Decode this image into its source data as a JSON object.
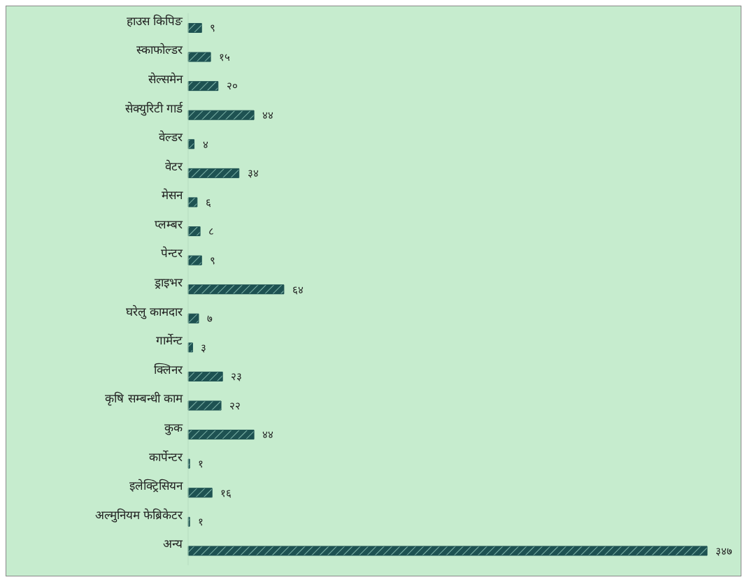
{
  "chart_data": {
    "type": "bar",
    "orientation": "horizontal",
    "categories": [
      "हाउस किपिङ",
      "स्काफोल्डर",
      "सेल्समेन",
      "सेक्युरिटी गार्ड",
      "वेल्डर",
      "वेटर",
      "मेसन",
      "प्लम्बर",
      "पेन्टर",
      "ड्राइभर",
      "घरेलु कामदार",
      "गार्मेन्ट",
      "क्लिनर",
      "कृषि सम्बन्धी काम",
      "कुक",
      "कार्पेन्टर",
      "इलेक्ट्रिसियन",
      "अल्मुनियम फेब्रिकेटर",
      "अन्य"
    ],
    "values": [
      9,
      15,
      20,
      44,
      4,
      34,
      6,
      8,
      9,
      64,
      7,
      3,
      23,
      22,
      44,
      1,
      16,
      1,
      347
    ],
    "value_labels": [
      "९",
      "१५",
      "२०",
      "४४",
      "४",
      "३४",
      "६",
      "८",
      "९",
      "६४",
      "७",
      "३",
      "२३",
      "२२",
      "४४",
      "१",
      "१६",
      "१",
      "३४७"
    ],
    "color": "#1e5252"
  }
}
